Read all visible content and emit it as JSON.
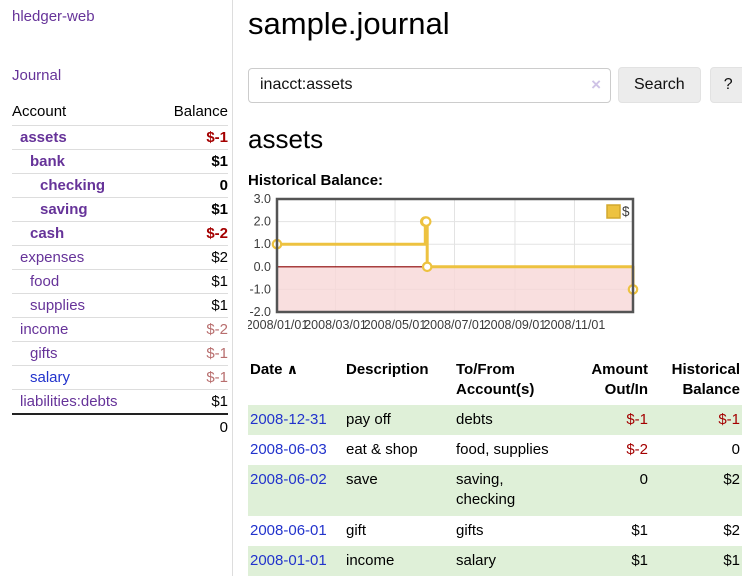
{
  "brand": "hledger-web",
  "nav": {
    "journal": "Journal"
  },
  "sidebar": {
    "header": {
      "account": "Account",
      "balance": "Balance"
    },
    "accounts": [
      {
        "name": "assets",
        "balance": "$-1"
      },
      {
        "name": "bank",
        "balance": "$1"
      },
      {
        "name": "checking",
        "balance": "0"
      },
      {
        "name": "saving",
        "balance": "$1"
      },
      {
        "name": "cash",
        "balance": "$-2"
      },
      {
        "name": "expenses",
        "balance": "$2"
      },
      {
        "name": "food",
        "balance": "$1"
      },
      {
        "name": "supplies",
        "balance": "$1"
      },
      {
        "name": "income",
        "balance": "$-2"
      },
      {
        "name": "gifts",
        "balance": "$-1"
      },
      {
        "name": "salary",
        "balance": "$-1"
      },
      {
        "name": "liabilities:debts",
        "balance": "$1"
      }
    ],
    "total": "0"
  },
  "main": {
    "title": "sample.journal",
    "search": {
      "value": "inacct:assets",
      "clear": "×",
      "button": "Search",
      "help": "?"
    },
    "account_heading": "assets",
    "section_label": "Historical Balance:"
  },
  "chart_data": {
    "type": "line",
    "step": true,
    "title": "Historical Balance:",
    "series": [
      {
        "name": "$",
        "color": "#edc240",
        "points": [
          [
            "2008-01-01",
            1
          ],
          [
            "2008-06-01",
            2
          ],
          [
            "2008-06-02",
            2
          ],
          [
            "2008-06-03",
            0
          ],
          [
            "2008-12-31",
            -1
          ]
        ]
      }
    ],
    "x_range": [
      "2008-01-01",
      "2008-12-31"
    ],
    "ylim": [
      -2,
      3
    ],
    "x_ticks": [
      "2008/01/01",
      "2008/03/01",
      "2008/05/01",
      "2008/07/01",
      "2008/09/01",
      "2008/11/01"
    ],
    "y_ticks": [
      {
        "label": "3.0",
        "value": 3
      },
      {
        "label": "2.0",
        "value": 2
      },
      {
        "label": "1.0",
        "value": 1
      },
      {
        "label": "0.0",
        "value": 0
      },
      {
        "label": "-1.0",
        "value": -1
      },
      {
        "label": "-2.0",
        "value": -2
      }
    ],
    "legend": {
      "label": "$",
      "position": "top-right"
    },
    "grid": true,
    "negative_shade_color": "#f8d7d7",
    "zero_line_color": "#8b0000",
    "border_color": "#545454"
  },
  "register": {
    "sort_icon": "∧",
    "columns": [
      {
        "line1": "Date",
        "line2": ""
      },
      {
        "line1": "Description",
        "line2": ""
      },
      {
        "line1": "To/From",
        "line2": "Account(s)"
      },
      {
        "line1": "Amount",
        "line2": "Out/In"
      },
      {
        "line1": "Historical",
        "line2": "Balance"
      }
    ],
    "rows": [
      {
        "date": "2008-12-31",
        "description": "pay off",
        "accounts": "debts",
        "amount": "$-1",
        "balance": "$-1"
      },
      {
        "date": "2008-06-03",
        "description": "eat & shop",
        "accounts": "food, supplies",
        "amount": "$-2",
        "balance": "0"
      },
      {
        "date": "2008-06-02",
        "description": "save",
        "accounts": "saving,\nchecking",
        "amount": "0",
        "balance": "$2"
      },
      {
        "date": "2008-06-01",
        "description": "gift",
        "accounts": "gifts",
        "amount": "$1",
        "balance": "$2"
      },
      {
        "date": "2008-01-01",
        "description": "income",
        "accounts": "salary",
        "amount": "$1",
        "balance": "$1"
      }
    ]
  }
}
